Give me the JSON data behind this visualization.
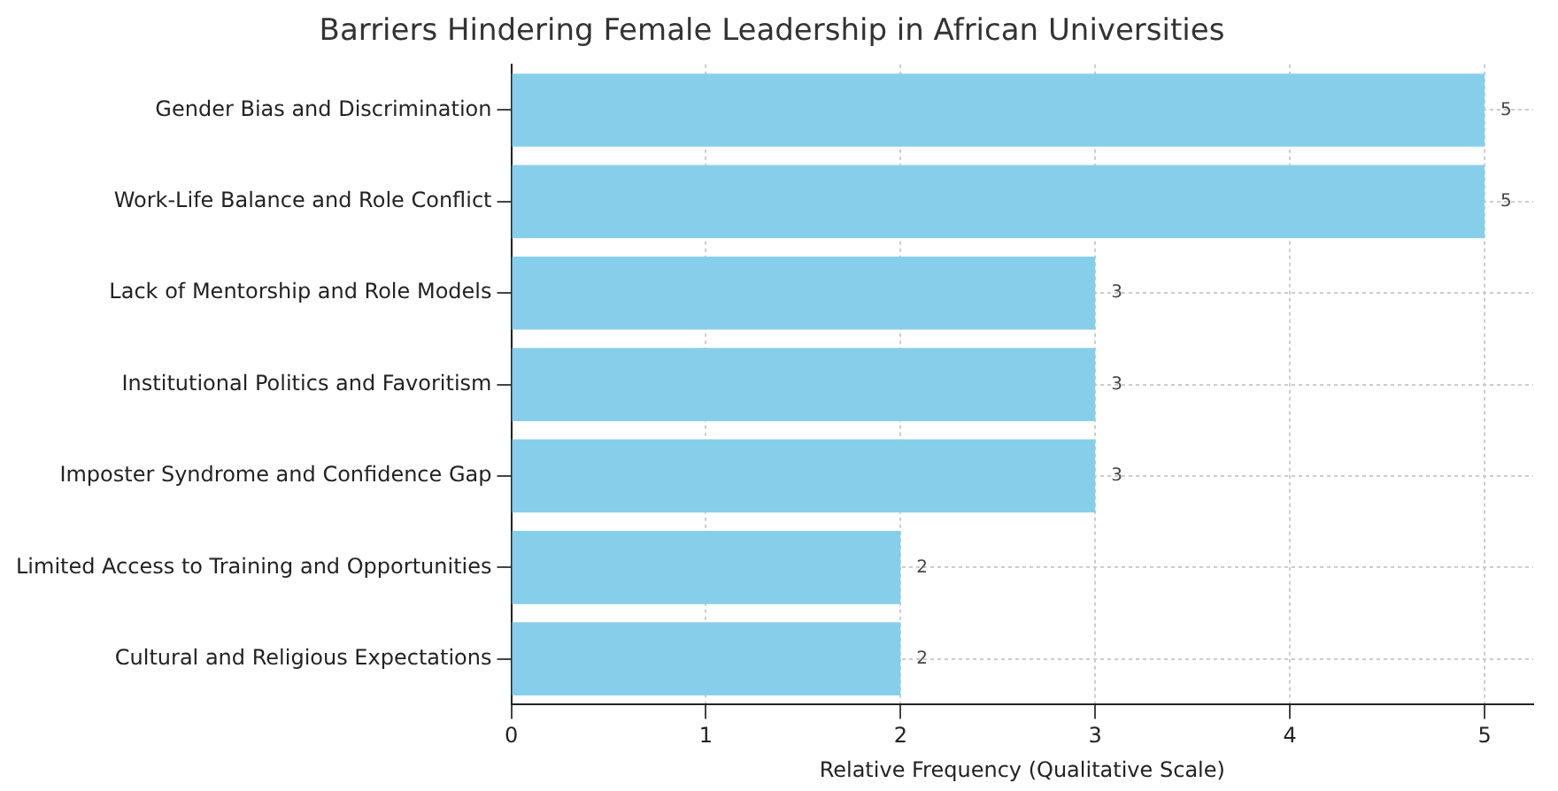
{
  "chart_data": {
    "type": "bar",
    "orientation": "horizontal",
    "title": "Barriers Hindering Female Leadership in African Universities",
    "xlabel": "Relative Frequency (Qualitative Scale)",
    "categories": [
      "Gender Bias and Discrimination",
      "Work-Life Balance and Role Conflict",
      "Lack of Mentorship and Role Models",
      "Institutional Politics and Favoritism",
      "Imposter Syndrome and Confidence Gap",
      "Limited Access to Training and Opportunities",
      "Cultural and Religious Expectations"
    ],
    "values": [
      5,
      5,
      3,
      3,
      3,
      2,
      2
    ],
    "color": "#87ceeb",
    "xlim": [
      0,
      5.25
    ],
    "xticks": [
      0,
      1,
      2,
      3,
      4,
      5
    ],
    "grid": true,
    "data_labels": true
  }
}
